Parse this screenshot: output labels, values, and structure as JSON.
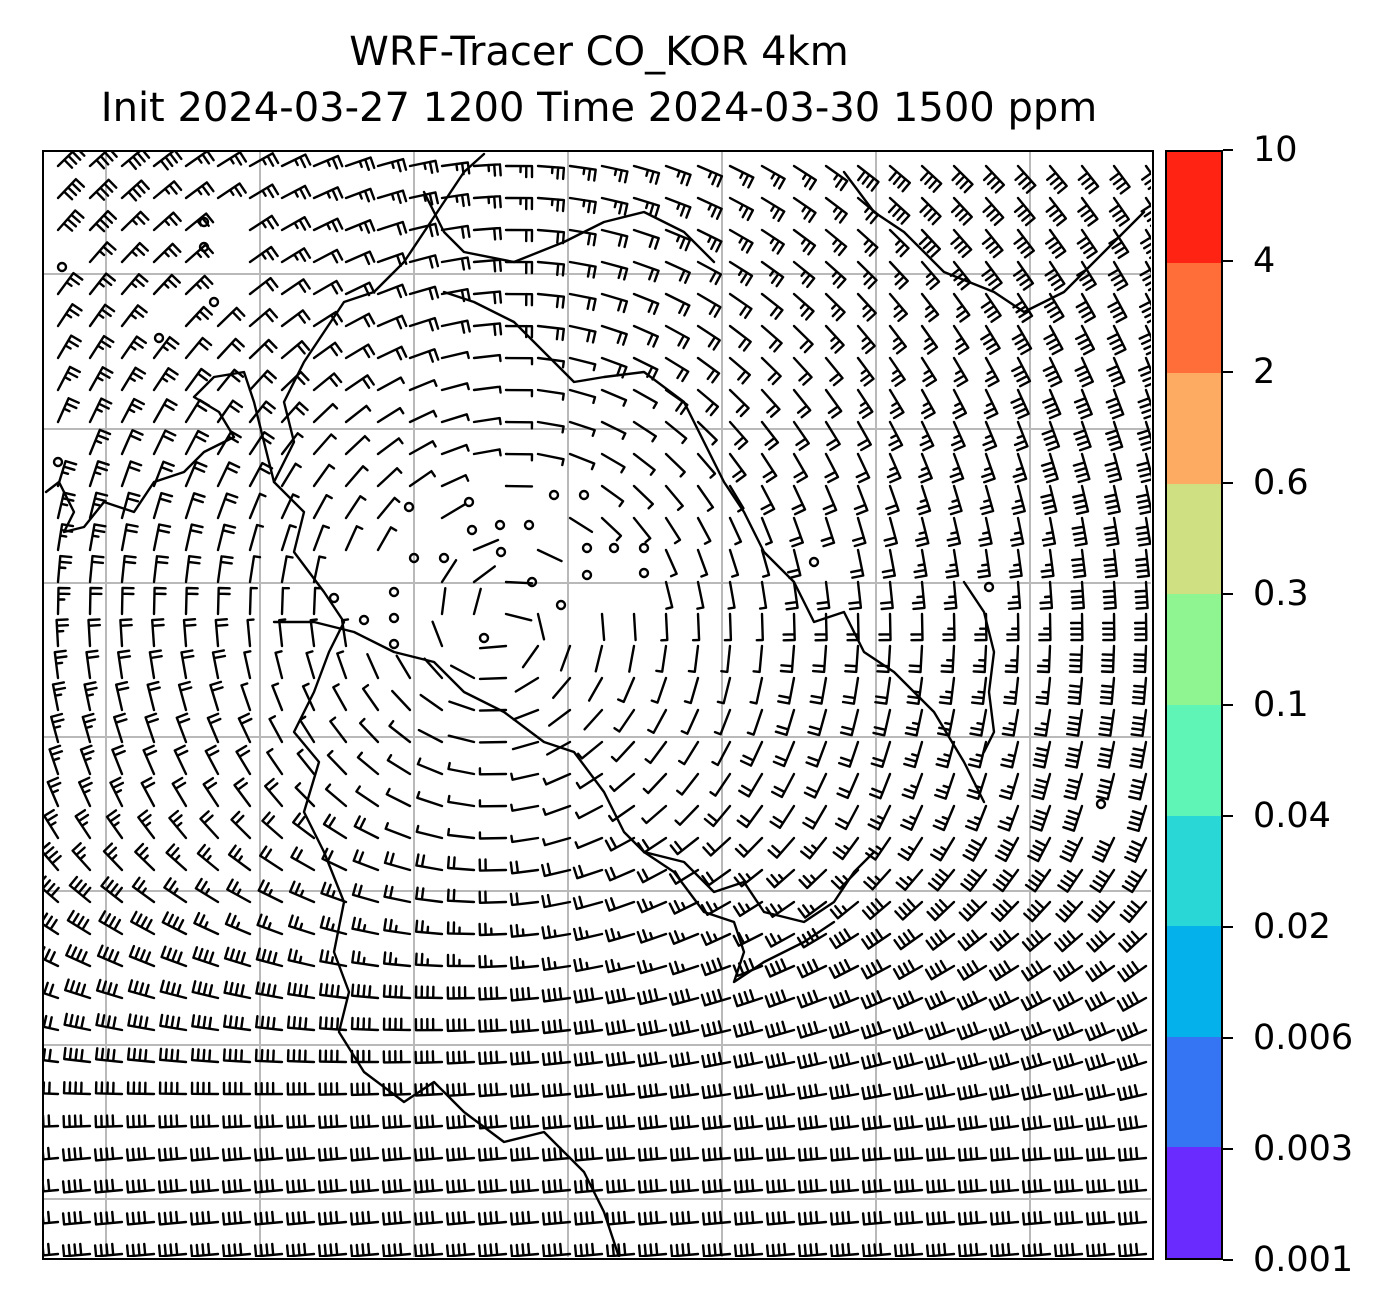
{
  "title": {
    "line1": "WRF-Tracer CO_KOR 4km",
    "line2": "Init 2024-03-27 1200 Time 2024-03-30 1500 ppm"
  },
  "map": {
    "gridlines": true,
    "coastlines": true,
    "wind_barbs": true
  },
  "colorbar": {
    "levels": [
      "0.001",
      "0.003",
      "0.006",
      "0.02",
      "0.04",
      "0.1",
      "0.3",
      "0.6",
      "2",
      "4",
      "10"
    ],
    "colors": [
      "#6a2bff",
      "#3574f2",
      "#04b1ea",
      "#29d8d6",
      "#5ef5b7",
      "#8ef591",
      "#cfe083",
      "#fdaa63",
      "#ff6e39",
      "#ff2314"
    ]
  }
}
